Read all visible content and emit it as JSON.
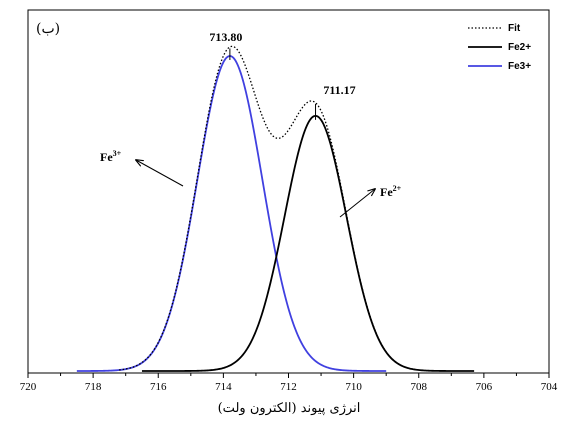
{
  "chart_data": {
    "type": "line",
    "panel_label": "(ب)",
    "xlabel": "انرژی پیوند (الکترون ولت)",
    "ylabel": "",
    "xlim": [
      720,
      704
    ],
    "x_reversed": true,
    "x_ticks": [
      "720",
      "718",
      "716",
      "714",
      "712",
      "710",
      "708",
      "706",
      "704"
    ],
    "grid": false,
    "legend_position": "top-right",
    "legend": [
      {
        "name": "Fit",
        "style": "dotted",
        "color": "#000000"
      },
      {
        "name": "Fe2+",
        "style": "solid",
        "color": "#000000"
      },
      {
        "name": "Fe3+",
        "style": "solid",
        "color": "#4040e0"
      }
    ],
    "series": [
      {
        "name": "Fe3+",
        "type": "gaussian",
        "center": 713.8,
        "amplitude": 1.0,
        "sigma": 1.0,
        "x_range": [
          718.5,
          709.0
        ],
        "color": "#4040e0"
      },
      {
        "name": "Fe2+",
        "type": "gaussian",
        "center": 711.17,
        "amplitude": 0.81,
        "sigma": 0.95,
        "x_range": [
          716.5,
          706.3
        ],
        "color": "#000000"
      },
      {
        "name": "Fit",
        "type": "sum",
        "color": "#000000"
      }
    ],
    "peak_labels": [
      {
        "text": "713.80",
        "x": 713.8
      },
      {
        "text": "711.17",
        "x": 711.17
      }
    ],
    "annotations": [
      {
        "label": "Fe",
        "sup": "3+",
        "arrow_to": "Fe3+"
      },
      {
        "label": "Fe",
        "sup": "2+",
        "arrow_to": "Fe2+"
      }
    ]
  }
}
